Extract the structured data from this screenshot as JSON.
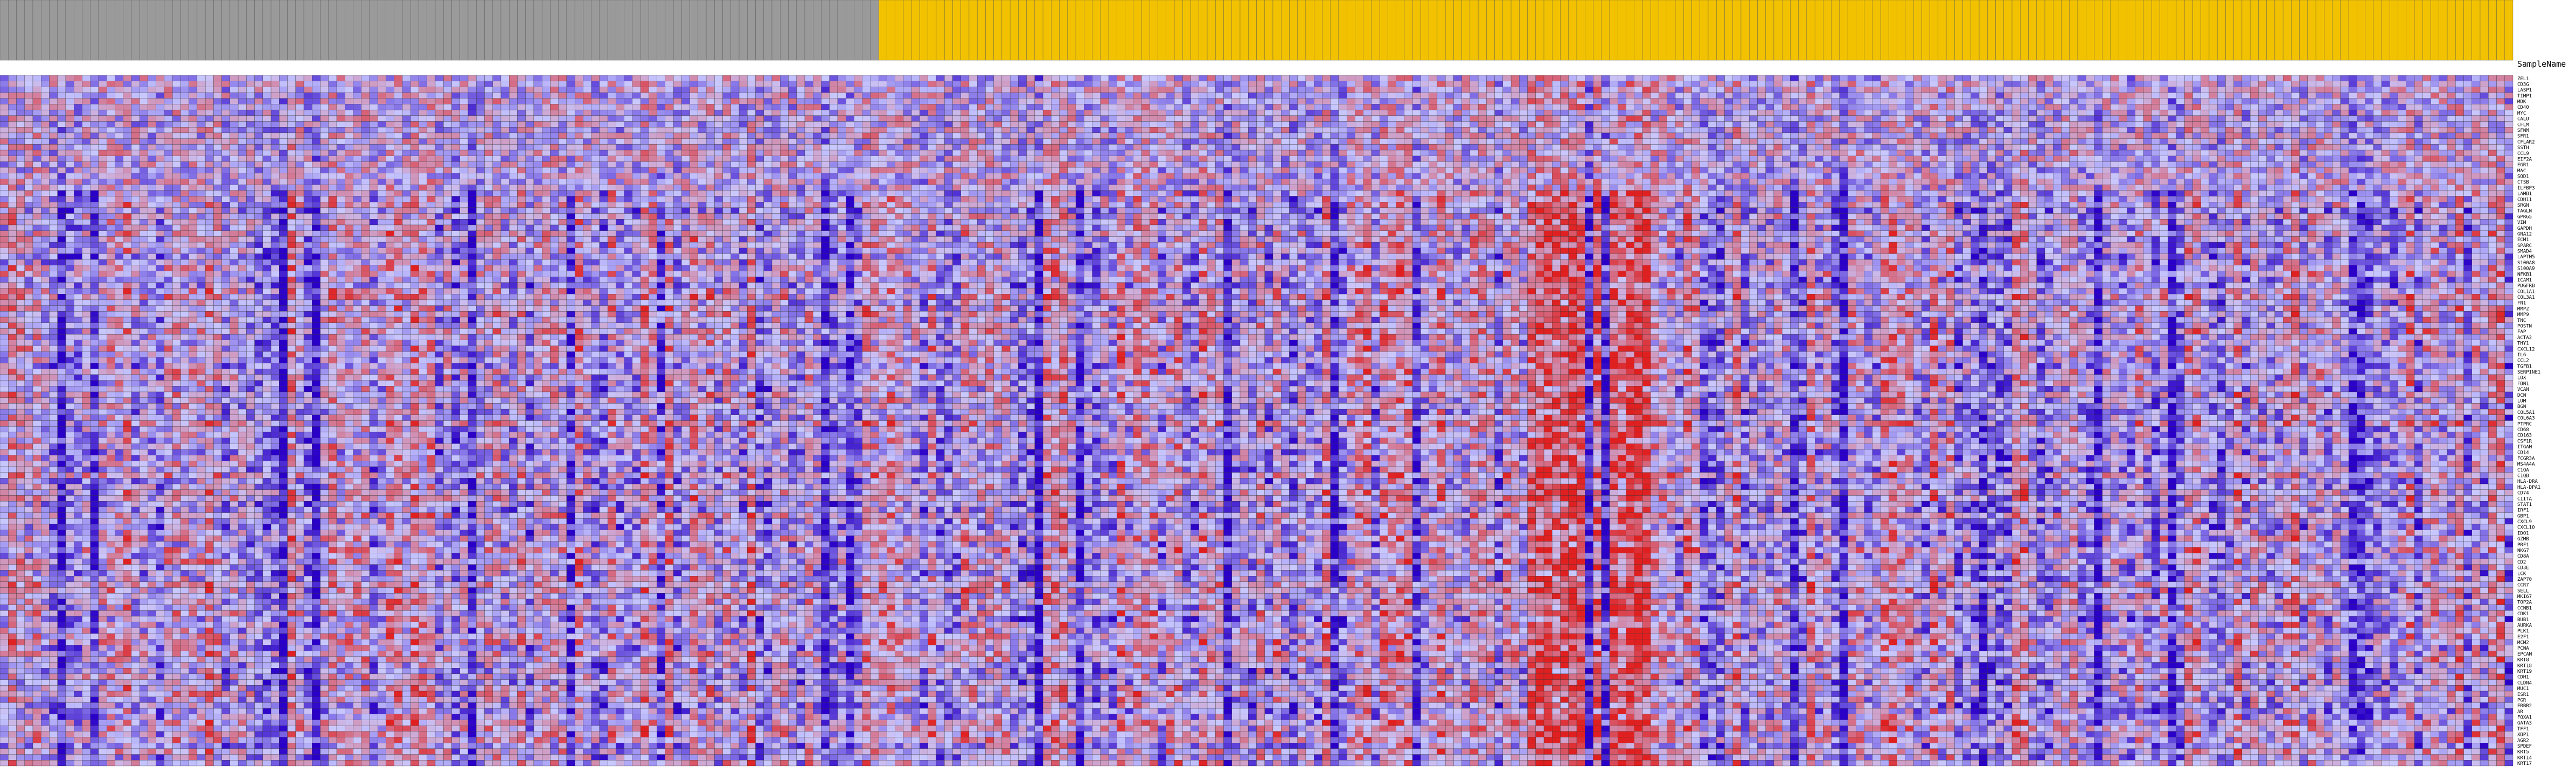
{
  "chart_data": {
    "type": "heatmap",
    "header_label": "SampleName",
    "groups": [
      {
        "name": "",
        "color": "#9a9a9a",
        "count": 107
      },
      {
        "name": "",
        "color": "#f2c200",
        "count": 199
      }
    ],
    "columns": 306,
    "row_labels": [
      "ZEL1",
      "CD3G",
      "LASP1",
      "TIMP1",
      "MDK",
      "CD40",
      "MYC",
      "CALU",
      "CFLM",
      "SFNM",
      "SFR1",
      "CFLAR2",
      "SSTH",
      "CCL9",
      "EIF2A",
      "EGR1",
      "MAC",
      "SOD1",
      "CTSB",
      "ILFBP3",
      "LAMB1",
      "CDH11",
      "SRGN",
      "TAGLN",
      "GPR65",
      "VIM",
      "GAPDH",
      "GNA12",
      "ECM1",
      "SPARC",
      "SMAD4",
      "LAPTM5",
      "S100A8",
      "S100A9",
      "NFKB1",
      "ICAM1",
      "PDGFRB",
      "COL1A1",
      "COL3A1",
      "FN1",
      "MMP2",
      "MMP9",
      "TNC",
      "POSTN",
      "FAP",
      "ACTA2",
      "THY1",
      "CXCL12",
      "IL6",
      "CCL2",
      "TGFB1",
      "SERPINE1",
      "LOX",
      "FBN1",
      "VCAN",
      "DCN",
      "LUM",
      "BGN",
      "COL5A1",
      "COL6A3",
      "PTPRC",
      "CD68",
      "CD163",
      "CSF1R",
      "ITGAM",
      "CD14",
      "FCGR3A",
      "MS4A4A",
      "C1QA",
      "C1QB",
      "HLA-DRA",
      "HLA-DPA1",
      "CD74",
      "CIITA",
      "STAT1",
      "IRF1",
      "GBP1",
      "CXCL9",
      "CXCL10",
      "IDO1",
      "GZMB",
      "PRF1",
      "NKG7",
      "CD8A",
      "CD2",
      "CD3E",
      "LCK",
      "ZAP70",
      "CCR7",
      "SELL",
      "MKI67",
      "TOP2A",
      "CCNB1",
      "CDK1",
      "BUB1",
      "AURKA",
      "PLK1",
      "E2F1",
      "MCM2",
      "PCNA",
      "EPCAM",
      "KRT8",
      "KRT18",
      "KRT19",
      "CDH1",
      "CLDN4",
      "MUC1",
      "ESR1",
      "PGR",
      "ERBB2",
      "AR",
      "FOXA1",
      "GATA3",
      "TFF1",
      "XBP1",
      "AGR2",
      "SPDEF",
      "KRT5",
      "KRT14",
      "KRT17"
    ],
    "values_note": "z-score matrix (rows x columns), range -2 to 2",
    "value_range": [
      -2,
      2
    ],
    "row_count": 120,
    "seed": 20240611,
    "colors": {
      "low": "#2a00c8",
      "mid": "#c9c9ff",
      "high": "#e02020",
      "grid": "#333333"
    }
  }
}
